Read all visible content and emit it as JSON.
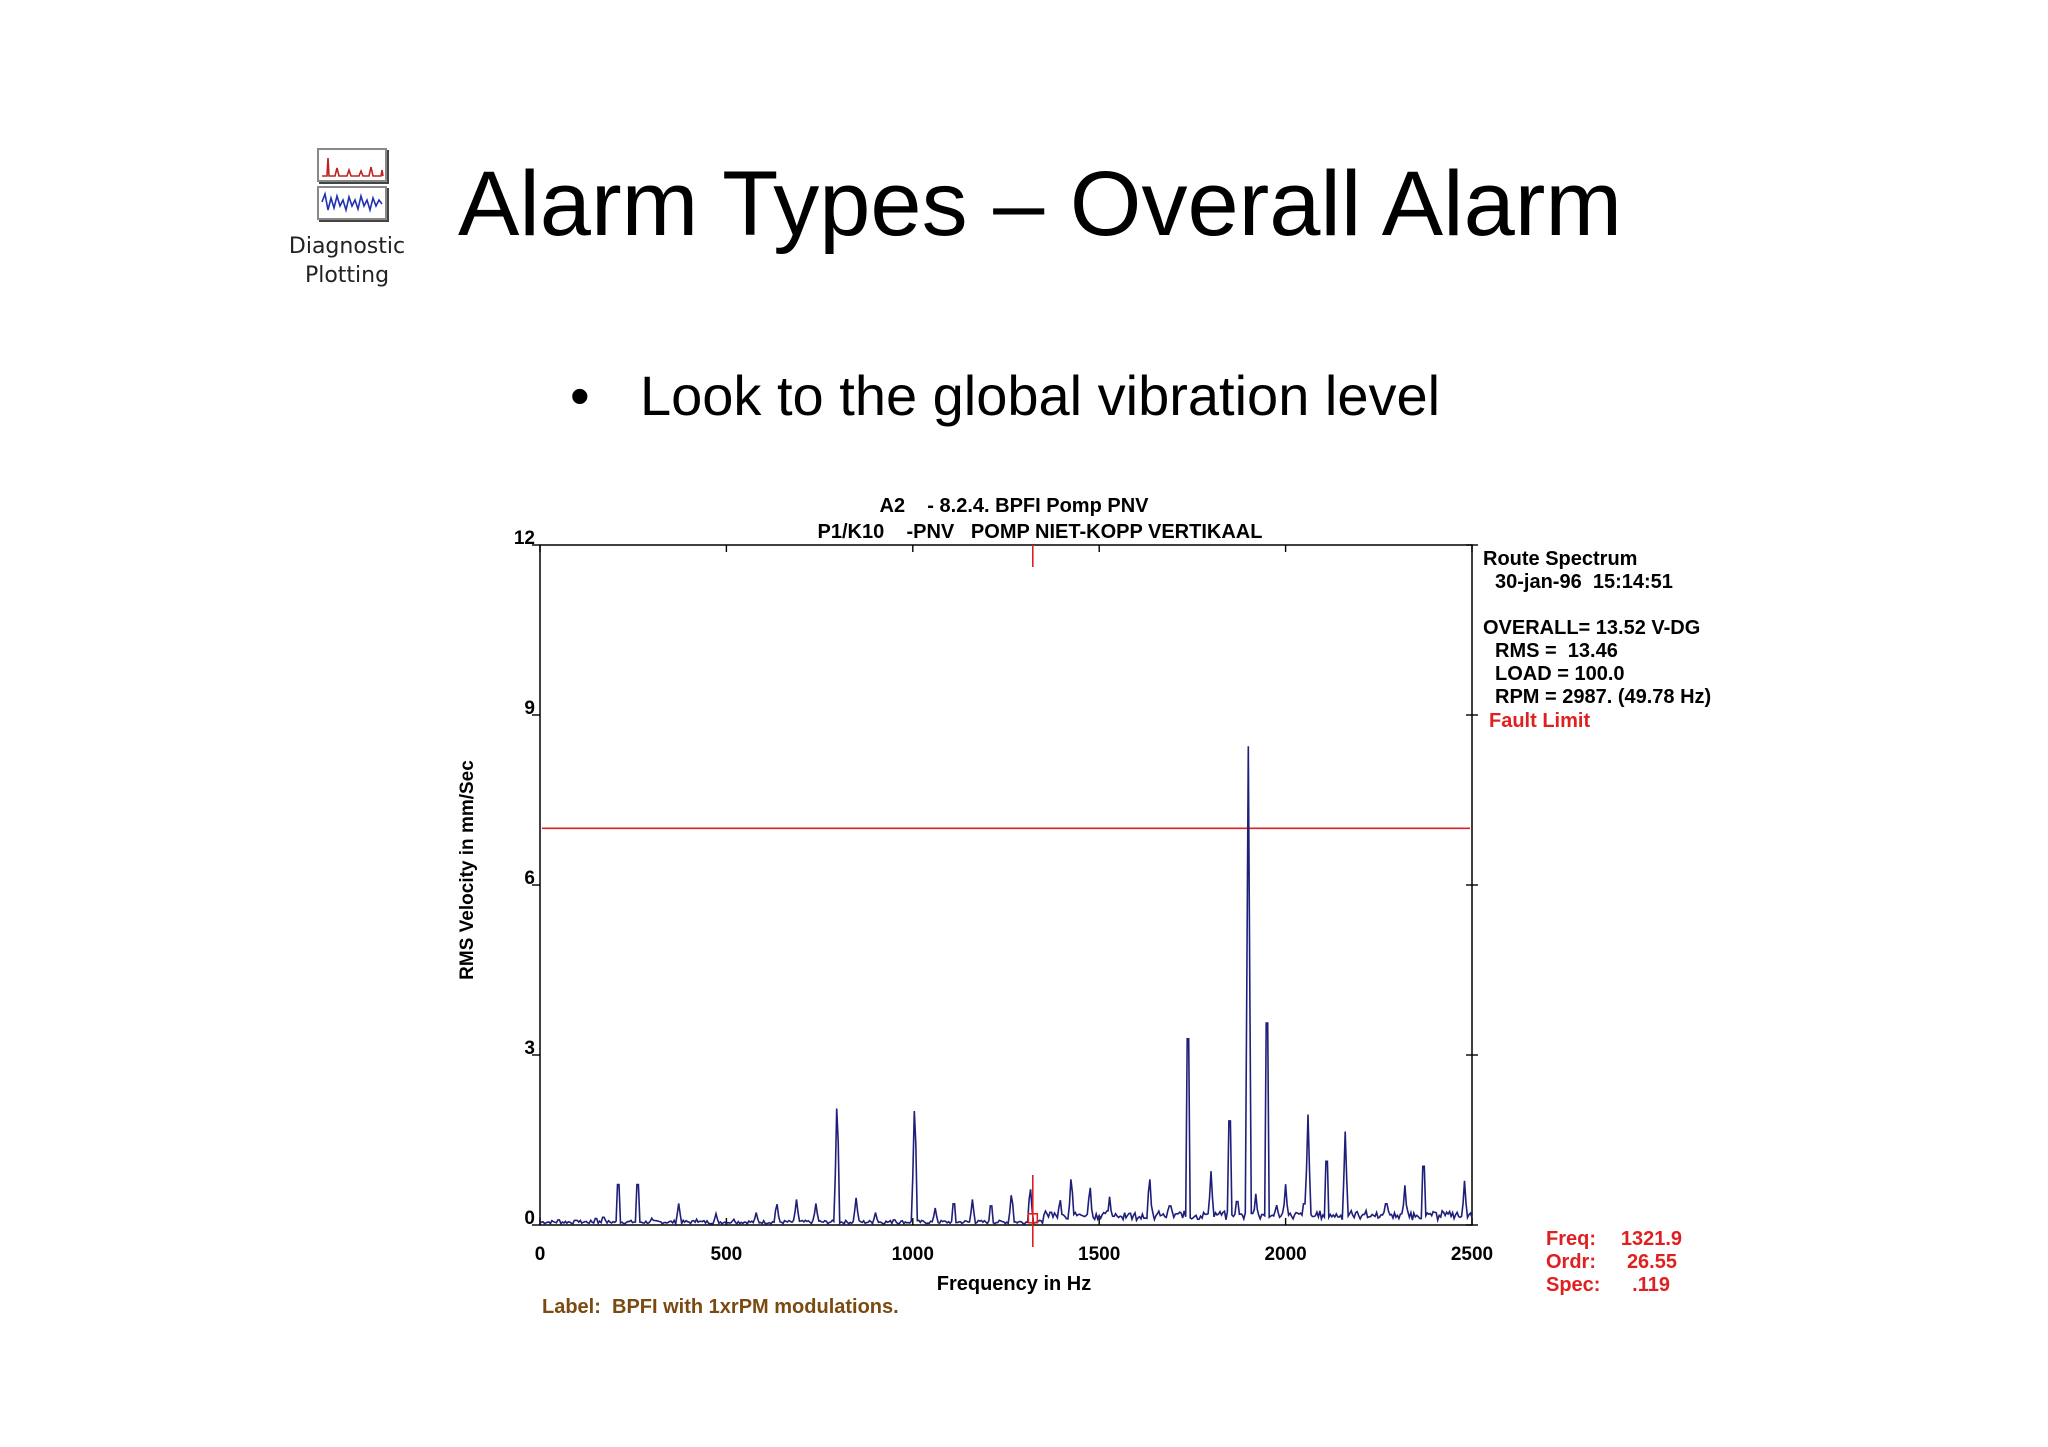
{
  "icon": {
    "name": "diagnostic-plotting-icon",
    "label_line1": "Diagnostic",
    "label_line2": "Plotting"
  },
  "slide": {
    "title": "Alarm Types – Overall Alarm",
    "bullet": "Look to the global vibration level"
  },
  "colors": {
    "spectrum": "#1f1f7a",
    "alarm": "#e02020",
    "label": "#7a4a10",
    "text": "#000000"
  },
  "chart_data": {
    "type": "line",
    "title": "A2    - 8.2.4. BPFI Pomp PNV",
    "subtitle": "P1/K10    -PNV   POMP NIET-KOPP VERTIKAAL",
    "xlabel": "Frequency in Hz",
    "ylabel": "RMS Velocity in mm/Sec",
    "xlim": [
      0,
      2500
    ],
    "ylim": [
      0,
      12
    ],
    "x_ticks": [
      0,
      500,
      1000,
      1500,
      2000,
      2500
    ],
    "y_ticks": [
      0,
      3,
      6,
      9,
      12
    ],
    "grid": false,
    "alarm_level": {
      "label": "Fault Limit",
      "value": 7.0
    },
    "cursor": {
      "freq": 1321.9,
      "amplitude": 0.119
    },
    "info": {
      "header": "Route Spectrum",
      "datetime": "30-jan-96  15:14:51",
      "overall": "OVERALL= 13.52 V-DG",
      "rms": "RMS =  13.46",
      "load": "LOAD = 100.0",
      "rpm": "RPM = 2987. (49.78 Hz)",
      "fault_limit": "Fault Limit"
    },
    "cursor_readout": [
      {
        "label": "Freq:",
        "value": "1321.9"
      },
      {
        "label": "Ordr:",
        "value": "26.55"
      },
      {
        "label": "Spec:",
        "value": ".119"
      }
    ],
    "footnote": "Label:  BPFI with 1xrPM modulations.",
    "base_level": 0.07,
    "peaks": [
      {
        "x": 50,
        "y": 0.12
      },
      {
        "x": 100,
        "y": 0.08
      },
      {
        "x": 150,
        "y": 0.15
      },
      {
        "x": 170,
        "y": 0.18
      },
      {
        "x": 210,
        "y": 0.95
      },
      {
        "x": 262,
        "y": 0.95
      },
      {
        "x": 300,
        "y": 0.12
      },
      {
        "x": 372,
        "y": 0.38
      },
      {
        "x": 420,
        "y": 0.1
      },
      {
        "x": 472,
        "y": 0.2
      },
      {
        "x": 520,
        "y": 0.1
      },
      {
        "x": 580,
        "y": 0.22
      },
      {
        "x": 635,
        "y": 0.42
      },
      {
        "x": 688,
        "y": 0.45
      },
      {
        "x": 740,
        "y": 0.38
      },
      {
        "x": 797,
        "y": 2.35
      },
      {
        "x": 848,
        "y": 0.48
      },
      {
        "x": 900,
        "y": 0.22
      },
      {
        "x": 950,
        "y": 0.12
      },
      {
        "x": 1005,
        "y": 2.3
      },
      {
        "x": 1060,
        "y": 0.3
      },
      {
        "x": 1110,
        "y": 0.5
      },
      {
        "x": 1160,
        "y": 0.45
      },
      {
        "x": 1210,
        "y": 0.45
      },
      {
        "x": 1265,
        "y": 0.6
      },
      {
        "x": 1315,
        "y": 0.72
      },
      {
        "x": 1370,
        "y": 0.3
      },
      {
        "x": 1395,
        "y": 0.5
      },
      {
        "x": 1425,
        "y": 0.92
      },
      {
        "x": 1475,
        "y": 0.75
      },
      {
        "x": 1528,
        "y": 0.5
      },
      {
        "x": 1580,
        "y": 0.2
      },
      {
        "x": 1635,
        "y": 0.92
      },
      {
        "x": 1690,
        "y": 0.45
      },
      {
        "x": 1738,
        "y": 4.38
      },
      {
        "x": 1800,
        "y": 0.95
      },
      {
        "x": 1850,
        "y": 2.45
      },
      {
        "x": 1870,
        "y": 0.55
      },
      {
        "x": 1900,
        "y": 8.45
      },
      {
        "x": 1920,
        "y": 0.55
      },
      {
        "x": 1950,
        "y": 4.75
      },
      {
        "x": 1975,
        "y": 0.4
      },
      {
        "x": 2000,
        "y": 0.72
      },
      {
        "x": 2050,
        "y": 0.5
      },
      {
        "x": 2060,
        "y": 1.95
      },
      {
        "x": 2110,
        "y": 1.5
      },
      {
        "x": 2160,
        "y": 1.65
      },
      {
        "x": 2210,
        "y": 0.25
      },
      {
        "x": 2270,
        "y": 0.5
      },
      {
        "x": 2320,
        "y": 0.7
      },
      {
        "x": 2370,
        "y": 1.38
      },
      {
        "x": 2420,
        "y": 0.25
      },
      {
        "x": 2480,
        "y": 0.78
      }
    ]
  }
}
